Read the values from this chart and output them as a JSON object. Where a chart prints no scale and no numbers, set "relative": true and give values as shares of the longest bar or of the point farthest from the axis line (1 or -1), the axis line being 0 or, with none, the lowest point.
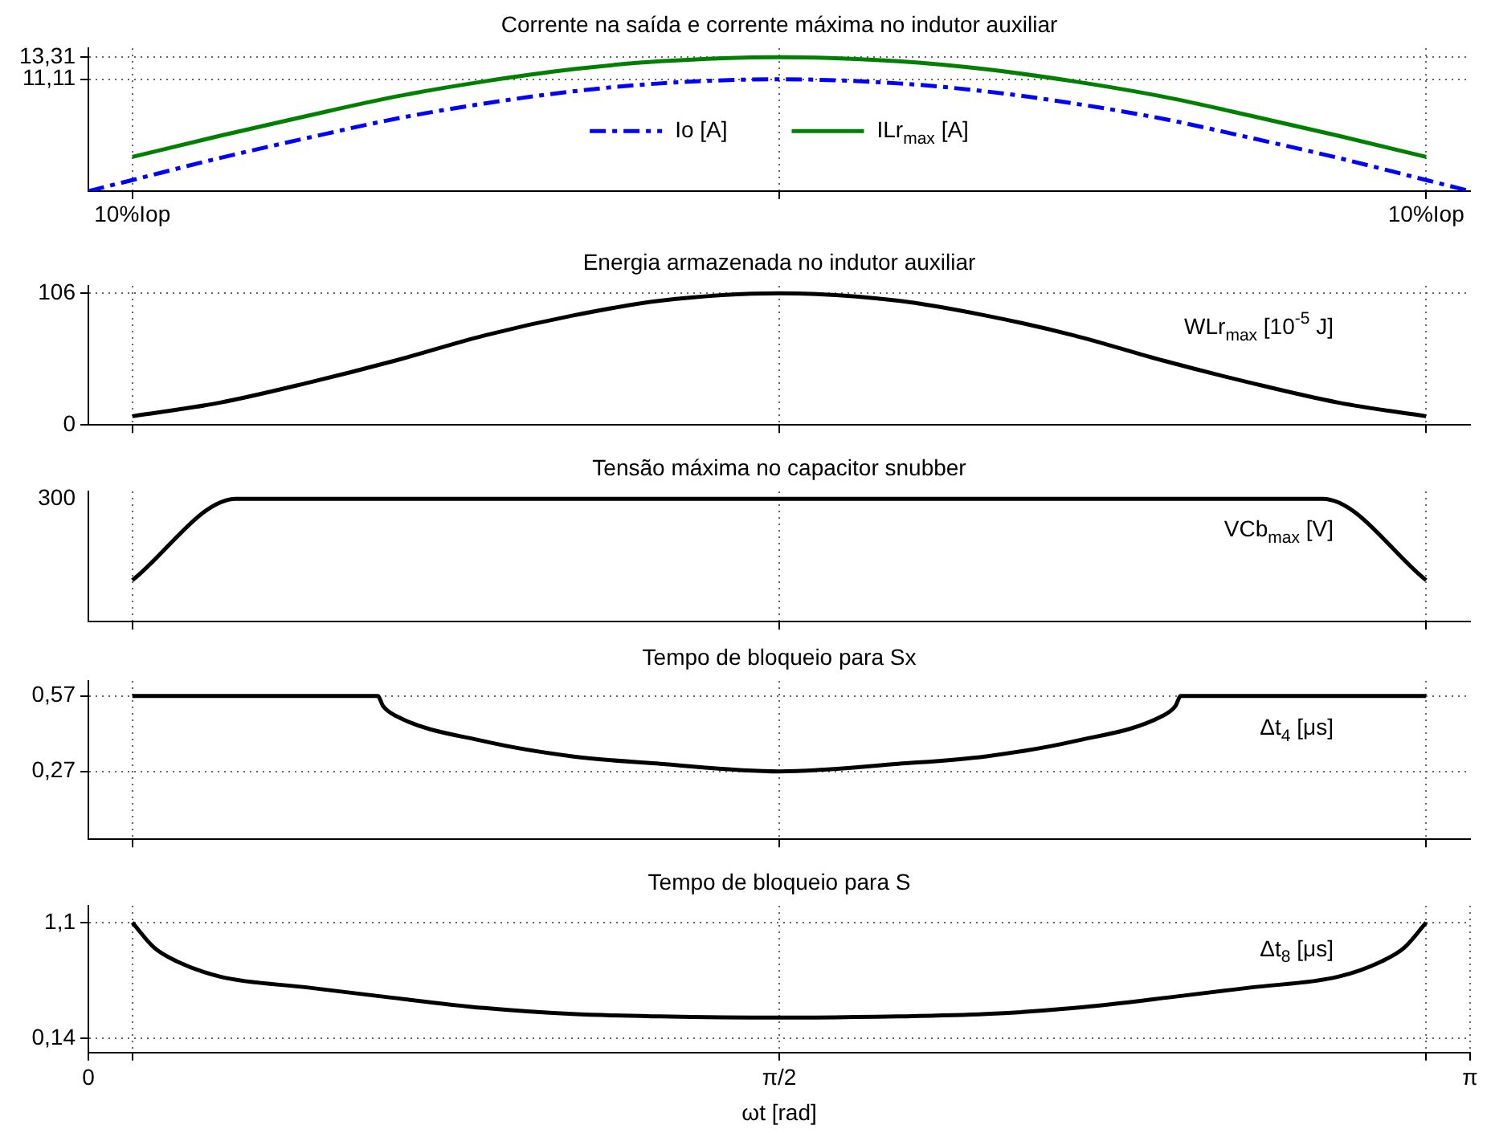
{
  "chart_data": [
    {
      "type": "line",
      "title": "Corrente na saída e corrente máxima no indutor auxiliar",
      "xlim": [
        0,
        3.1416
      ],
      "xticks": [
        {
          "value": 0.1,
          "label": null
        },
        {
          "value": 1.5708,
          "label": null
        },
        {
          "value": 3.0416,
          "label": null
        }
      ],
      "ylim": [
        0,
        14.2
      ],
      "yticks": [
        {
          "value": 11.11,
          "label": "11,11"
        },
        {
          "value": 13.31,
          "label": "13,31"
        }
      ],
      "grid": true,
      "legend": "center",
      "tick_labels": "y",
      "annotations": [
        "10%Iop",
        "10%Iop"
      ],
      "series": [
        {
          "name": "Io [A]",
          "color": "#0000ff",
          "line_style": "dashed",
          "x": [
            0,
            0.1,
            0.3,
            0.5,
            0.7,
            0.9,
            1.1,
            1.3,
            1.5708,
            1.8416,
            2.0416,
            2.2416,
            2.4416,
            2.6416,
            2.8416,
            3.0416,
            3.1416
          ],
          "values": [
            0,
            1.1,
            3.3,
            5.3,
            7.2,
            8.7,
            9.9,
            10.7,
            11.11,
            10.7,
            9.9,
            8.7,
            7.2,
            5.3,
            3.3,
            1.1,
            0
          ]
        },
        {
          "name": "ILr$_{max}$ [A]",
          "color": "#008000",
          "line_style": "solid",
          "x": [
            0.1,
            0.3,
            0.5,
            0.7,
            0.9,
            1.1,
            1.3,
            1.5708,
            1.8416,
            2.0416,
            2.2416,
            2.4416,
            2.6416,
            2.8416,
            3.0416
          ],
          "values": [
            3.4,
            5.5,
            7.5,
            9.4,
            10.9,
            12.1,
            12.9,
            13.31,
            12.9,
            12.1,
            10.9,
            9.4,
            7.5,
            5.5,
            3.4
          ]
        }
      ]
    },
    {
      "type": "line",
      "title": "Energia armazenada no indutor auxiliar",
      "xlim": [
        0,
        3.1416
      ],
      "xticks": [
        {
          "value": 0.1,
          "label": null
        },
        {
          "value": 1.5708,
          "label": null
        },
        {
          "value": 3.0416,
          "label": null
        }
      ],
      "ylim": [
        0,
        112
      ],
      "yticks": [
        0,
        106
      ],
      "grid": true,
      "tick_labels": "y",
      "series": [
        {
          "name": "WLr$_{max}$ [10$^{-5}$ J]",
          "color": "#000000",
          "line_style": "solid",
          "x": [
            0.1,
            0.3,
            0.5,
            0.7,
            0.9,
            1.1,
            1.3,
            1.5708,
            1.8416,
            2.0416,
            2.2416,
            2.4416,
            2.6416,
            2.8416,
            3.0416
          ],
          "values": [
            7,
            18,
            34,
            52,
            72,
            88,
            100,
            106,
            100,
            88,
            72,
            52,
            34,
            18,
            7
          ]
        }
      ]
    },
    {
      "type": "line",
      "title": "Tensão máxima no capacitor snubber",
      "xlim": [
        0,
        3.1416
      ],
      "xticks": [
        {
          "value": 0.1,
          "label": null
        },
        {
          "value": 1.5708,
          "label": null
        },
        {
          "value": 3.0416,
          "label": null
        }
      ],
      "relative": true,
      "grid": true,
      "tick_labels": false,
      "annotations": [
        "300"
      ],
      "series": [
        {
          "name": "VCb$_{max}$ [V]",
          "color": "#000000",
          "line_style": "solid",
          "x": [
            0.1,
            0.336,
            2.806,
            3.0416
          ],
          "values": [
            0.336,
            1,
            1,
            0.336
          ]
        }
      ]
    },
    {
      "type": "line",
      "title": "Tempo de bloqueio para Sx",
      "xlim": [
        0,
        3.1416
      ],
      "xticks": [
        {
          "value": 0.1,
          "label": null
        },
        {
          "value": 1.5708,
          "label": null
        },
        {
          "value": 3.0416,
          "label": null
        }
      ],
      "ylim": [
        0,
        0.63
      ],
      "yticks": [
        {
          "value": 0.27,
          "label": "0,27"
        },
        {
          "value": 0.57,
          "label": "0,57"
        }
      ],
      "grid": true,
      "tick_labels": "y",
      "series": [
        {
          "name": "Δt$_{4}$ [μs]",
          "color": "#000000",
          "line_style": "solid",
          "x": [
            0.1,
            0.658,
            0.67,
            0.7,
            0.9,
            1.1,
            1.3,
            1.5708,
            1.8416,
            2.0416,
            2.2416,
            2.4416,
            2.4716,
            2.4836,
            3.0416
          ],
          "values": [
            0.57,
            0.57,
            0.53,
            0.49,
            0.39,
            0.33,
            0.3,
            0.27,
            0.3,
            0.33,
            0.39,
            0.49,
            0.53,
            0.57,
            0.57
          ]
        }
      ]
    },
    {
      "type": "line",
      "title": "Tempo de bloqueio para S",
      "xlabel": "ωt [rad]",
      "xlim": [
        0,
        3.1416
      ],
      "xticks": [
        0,
        {
          "value": 0.1,
          "label": null
        },
        {
          "value": 1.5708,
          "label": "π/2"
        },
        {
          "value": 3.0416,
          "label": null
        },
        {
          "value": 3.1416,
          "label": "π"
        }
      ],
      "ylim": [
        0.02,
        1.24
      ],
      "yticks": [
        {
          "value": 0.14,
          "label": "0,14"
        },
        {
          "value": 1.1,
          "label": "1,1"
        }
      ],
      "grid": true,
      "series": [
        {
          "name": "Δt$_{8}$ [μs]",
          "color": "#000000",
          "line_style": "solid",
          "x": [
            0.1,
            0.15,
            0.2,
            0.3,
            0.5,
            0.658,
            0.9,
            1.1,
            1.3,
            1.5708,
            1.8416,
            2.0416,
            2.2416,
            2.4836,
            2.6416,
            2.8416,
            2.9416,
            2.9916,
            3.0416
          ],
          "values": [
            1.1,
            0.89,
            0.78,
            0.65,
            0.56,
            0.49,
            0.39,
            0.34,
            0.32,
            0.31,
            0.32,
            0.34,
            0.39,
            0.49,
            0.56,
            0.65,
            0.78,
            0.89,
            1.1
          ]
        }
      ]
    }
  ]
}
